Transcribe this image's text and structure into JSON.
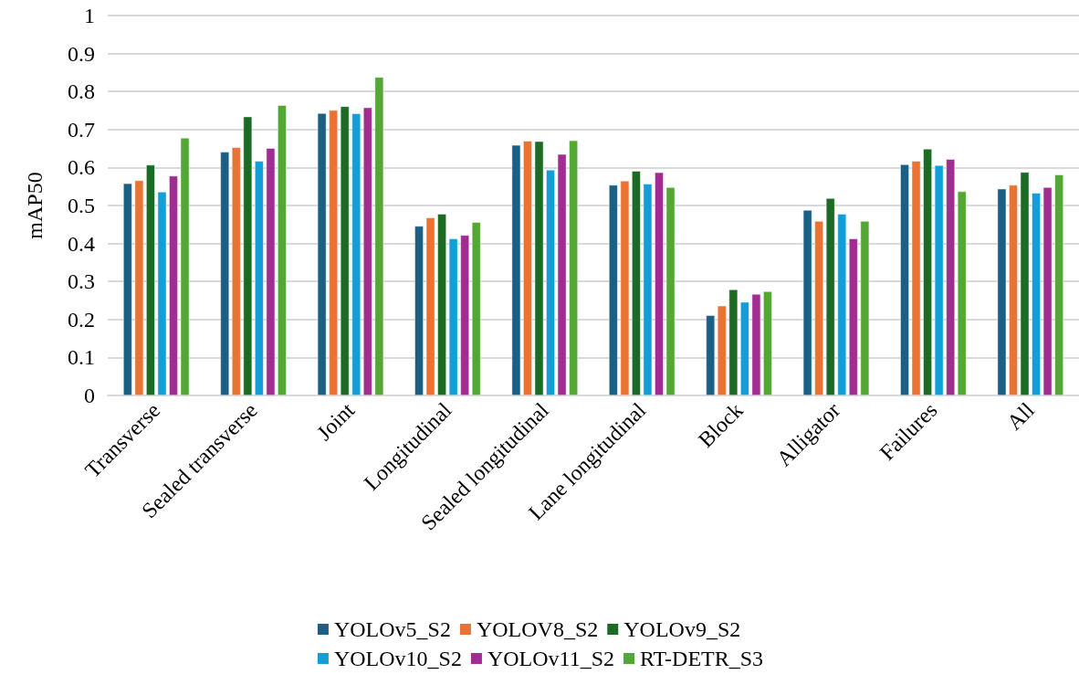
{
  "chart_data": {
    "type": "bar",
    "ylabel": "mAP50",
    "categories": [
      "Transverse",
      "Sealed transverse",
      "Joint",
      "Longitudinal",
      "Sealed longitudinal",
      "Lane longitudinal",
      "Block",
      "Alligator",
      "Failures",
      "All"
    ],
    "series": [
      {
        "name": "YOLOv5_S2",
        "color": "#1b5f84",
        "values": [
          0.558,
          0.641,
          0.743,
          0.446,
          0.659,
          0.554,
          0.211,
          0.488,
          0.608,
          0.544
        ]
      },
      {
        "name": "YOLOV8_S2",
        "color": "#ea7233",
        "values": [
          0.566,
          0.653,
          0.751,
          0.468,
          0.67,
          0.565,
          0.236,
          0.459,
          0.617,
          0.554
        ]
      },
      {
        "name": "YOLOv9_S2",
        "color": "#1c6b25",
        "values": [
          0.607,
          0.734,
          0.761,
          0.478,
          0.669,
          0.591,
          0.279,
          0.519,
          0.649,
          0.588
        ]
      },
      {
        "name": "YOLOv10_S2",
        "color": "#129fd8",
        "values": [
          0.536,
          0.617,
          0.742,
          0.413,
          0.594,
          0.557,
          0.246,
          0.478,
          0.606,
          0.533
        ]
      },
      {
        "name": "YOLOv11_S2",
        "color": "#a12d92",
        "values": [
          0.578,
          0.651,
          0.758,
          0.422,
          0.635,
          0.587,
          0.267,
          0.413,
          0.622,
          0.548
        ]
      },
      {
        "name": "RT-DETR_S3",
        "color": "#52a833",
        "values": [
          0.678,
          0.764,
          0.838,
          0.456,
          0.671,
          0.548,
          0.274,
          0.459,
          0.537,
          0.581
        ]
      }
    ],
    "ylim": [
      0,
      1
    ],
    "yticks": [
      0,
      0.1,
      0.2,
      0.3,
      0.4,
      0.5,
      0.6,
      0.7,
      0.8,
      0.9,
      1
    ],
    "grid": "y",
    "legend": "bottom"
  }
}
